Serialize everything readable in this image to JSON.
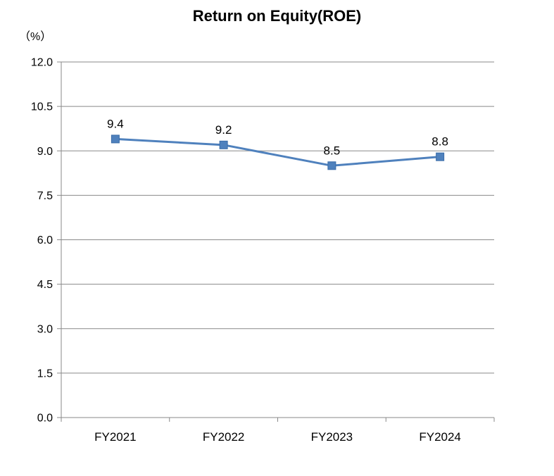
{
  "header": {
    "title": "Return on Equity(ROE)",
    "unit_label": "（%）"
  },
  "colors": {
    "line": "#4F81BD",
    "marker_fill": "#4F81BD",
    "marker_border": "#3A6CA8",
    "grid": "#898989",
    "axis": "#898989",
    "text": "#000000"
  },
  "chart_data": {
    "type": "line",
    "title": "Return on Equity(ROE)",
    "categories": [
      "FY2021",
      "FY2022",
      "FY2023",
      "FY2024"
    ],
    "series": [
      {
        "name": "ROE",
        "values": [
          9.4,
          9.2,
          8.5,
          8.8
        ],
        "data_labels": [
          "9.4",
          "9.2",
          "8.5",
          "8.8"
        ]
      }
    ],
    "xlabel": "",
    "ylabel": "（%）",
    "ylim": [
      0,
      12
    ],
    "ytick_step": 1.5,
    "ytick_labels": [
      "0.0",
      "1.5",
      "3.0",
      "4.5",
      "6.0",
      "7.5",
      "9.0",
      "10.5",
      "12.0"
    ],
    "grid": true,
    "legend_position": "none",
    "marker": "square"
  }
}
